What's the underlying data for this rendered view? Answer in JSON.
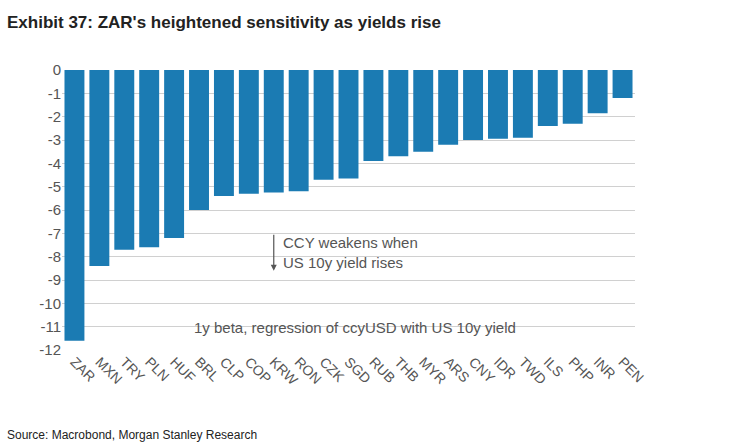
{
  "chart_data": {
    "type": "bar",
    "title": "Exhibit 37: ZAR's heightened sensitivity as yields rise",
    "source": "Source: Macrobond, Morgan Stanley Research",
    "annotations": [
      "CCY weakens when\nUS 10y yield rises",
      "1y beta, regression of ccyUSD with US 10y yield"
    ],
    "categories": [
      "ZAR",
      "MXN",
      "TRY",
      "PLN",
      "HUF",
      "BRL",
      "CLP",
      "COP",
      "KRW",
      "RON",
      "CZK",
      "SGD",
      "RUB",
      "THB",
      "MYR",
      "ARS",
      "CNY",
      "IDR",
      "TWD",
      "ILS",
      "PHP",
      "INR",
      "PEN"
    ],
    "values": [
      -11.6,
      -8.4,
      -7.7,
      -7.6,
      -7.2,
      -6.0,
      -5.4,
      -5.3,
      -5.25,
      -5.2,
      -4.7,
      -4.65,
      -3.9,
      -3.7,
      -3.5,
      -3.2,
      -3.0,
      -2.95,
      -2.9,
      -2.4,
      -2.3,
      -1.85,
      -1.2
    ],
    "color": "#1b7bb3",
    "ylim": [
      -12,
      0
    ],
    "yticks": [
      -12,
      -11,
      -10,
      -9,
      -8,
      -7,
      -6,
      -5,
      -4,
      -3,
      -2,
      -1,
      0
    ],
    "grid": true
  }
}
